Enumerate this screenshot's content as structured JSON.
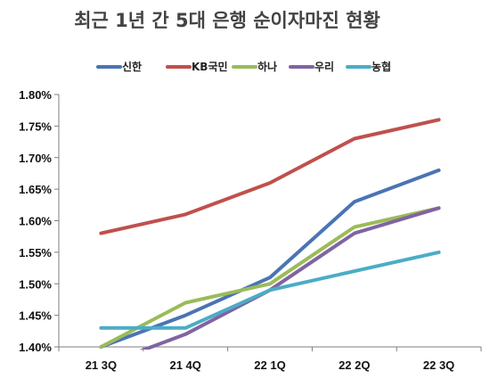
{
  "chart_data": {
    "type": "line",
    "title": "최근 1년 간 5대 은행 순이자마진 현황",
    "xlabel": "",
    "ylabel": "",
    "categories": [
      "21 3Q",
      "21 4Q",
      "22 1Q",
      "22 2Q",
      "22 3Q"
    ],
    "y_tick_labels": [
      "1.40%",
      "1.45%",
      "1.50%",
      "1.55%",
      "1.60%",
      "1.65%",
      "1.70%",
      "1.75%",
      "1.80%"
    ],
    "ylim": [
      1.4,
      1.8
    ],
    "grid": false,
    "legend_position": "top",
    "series": [
      {
        "name": "신한",
        "color": "#4a74b4",
        "values": [
          1.4,
          1.45,
          1.51,
          1.63,
          1.68
        ]
      },
      {
        "name": "KB국민",
        "color": "#c0504d",
        "values": [
          1.58,
          1.61,
          1.66,
          1.73,
          1.76
        ]
      },
      {
        "name": "하나",
        "color": "#9bbb59",
        "values": [
          1.4,
          1.47,
          1.5,
          1.59,
          1.62
        ]
      },
      {
        "name": "우리",
        "color": "#8064a2",
        "values": [
          1.37,
          1.42,
          1.49,
          1.58,
          1.62
        ]
      },
      {
        "name": "농협",
        "color": "#4bacc6",
        "values": [
          1.43,
          1.43,
          1.49,
          1.52,
          1.55
        ]
      }
    ]
  }
}
